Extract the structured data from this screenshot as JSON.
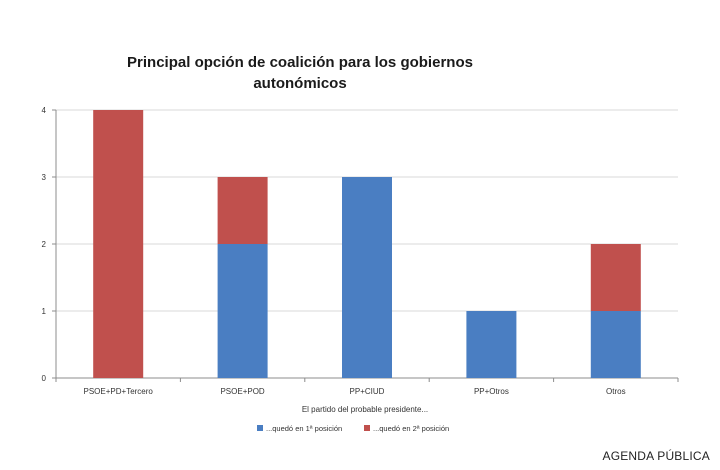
{
  "chart_data": {
    "type": "bar",
    "stacked": true,
    "title": "Principal opción de coalición para los gobiernos autonómicos",
    "title_lines": [
      "Principal opción de coalición para los gobiernos",
      "autonómicos"
    ],
    "xlabel": "El partido del probable presidente...",
    "ylabel": "",
    "ylim": [
      0,
      4
    ],
    "yticks": [
      0,
      1,
      2,
      3,
      4
    ],
    "grid": true,
    "legend_position": "bottom",
    "categories": [
      "PSOE+PD+Tercero",
      "PSOE+POD",
      "PP+CIUD",
      "PP+Otros",
      "Otros"
    ],
    "series": [
      {
        "name": "...quedó en 1ª posición",
        "color": "#4a7ec2",
        "values": [
          0,
          2,
          3,
          1,
          1
        ]
      },
      {
        "name": "...quedó en 2ª posición",
        "color": "#c0504d",
        "values": [
          4,
          1,
          0,
          0,
          1
        ]
      }
    ]
  },
  "footer": {
    "credit": "AGENDA PÚBLICA"
  }
}
